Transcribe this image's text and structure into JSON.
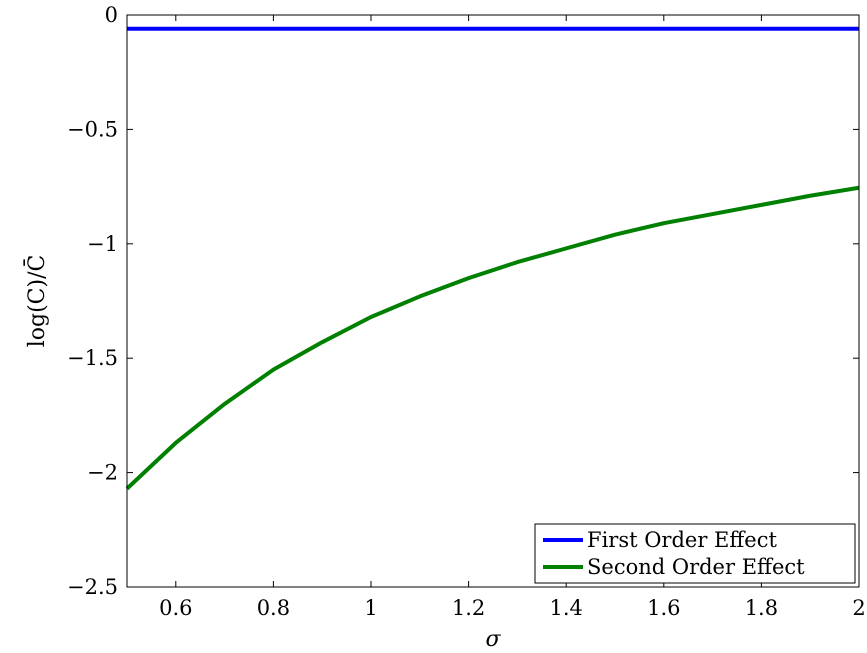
{
  "chart_data": {
    "type": "line",
    "xlabel": "σ",
    "ylabel": "log(C)/C̄",
    "xlim": [
      0.5,
      2
    ],
    "ylim": [
      -2.5,
      0
    ],
    "x_ticks": [
      0.6,
      0.8,
      1,
      1.2,
      1.4,
      1.6,
      1.8,
      2
    ],
    "x_tick_labels": [
      "0.6",
      "0.8",
      "1",
      "1.2",
      "1.4",
      "1.6",
      "1.8",
      "2"
    ],
    "y_ticks": [
      0,
      -0.5,
      -1,
      -1.5,
      -2,
      -2.5
    ],
    "y_tick_labels": [
      "0",
      "−0.5",
      "−1",
      "−1.5",
      "−2",
      "−2.5"
    ],
    "grid": false,
    "legend_position": "bottom-right",
    "series": [
      {
        "name": "First Order Effect",
        "color": "#0000ff",
        "x": [
          0.5,
          2.0
        ],
        "y": [
          -0.06,
          -0.06
        ]
      },
      {
        "name": "Second Order Effect",
        "color": "#008000",
        "x": [
          0.5,
          0.6,
          0.7,
          0.8,
          0.9,
          1.0,
          1.1,
          1.2,
          1.3,
          1.4,
          1.5,
          1.6,
          1.7,
          1.8,
          1.9,
          2.0
        ],
        "y": [
          -2.07,
          -1.87,
          -1.7,
          -1.55,
          -1.43,
          -1.32,
          -1.23,
          -1.15,
          -1.08,
          -1.02,
          -0.96,
          -0.91,
          -0.87,
          -0.83,
          -0.79,
          -0.755
        ]
      }
    ]
  }
}
